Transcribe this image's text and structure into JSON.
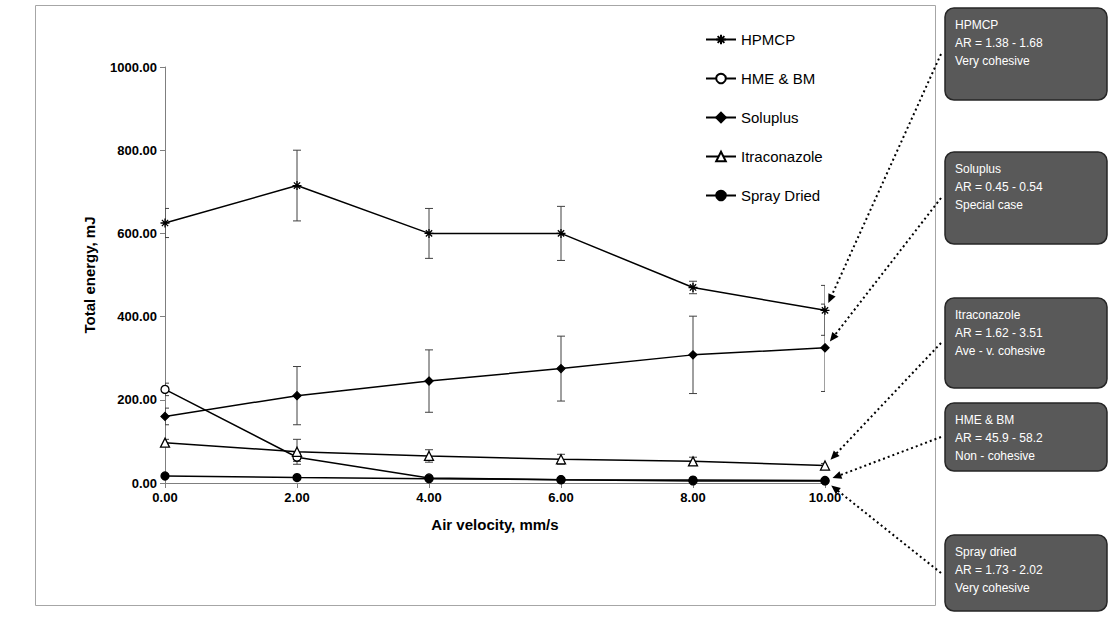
{
  "chart_data": {
    "type": "line",
    "x_label": "Air velocity, mm/s",
    "y_label": "Total energy, mJ",
    "x": [
      0,
      2,
      4,
      6,
      8,
      10
    ],
    "xlim": [
      0,
      10
    ],
    "xticks": [
      {
        "value": 0,
        "label": "0.00"
      },
      {
        "value": 2,
        "label": "2.00"
      },
      {
        "value": 4,
        "label": "4.00"
      },
      {
        "value": 6,
        "label": "6.00"
      },
      {
        "value": 8,
        "label": "8.00"
      },
      {
        "value": 10,
        "label": "10.00"
      }
    ],
    "ylim": [
      0,
      1000
    ],
    "yticks": [
      {
        "value": 0,
        "label": "0.00"
      },
      {
        "value": 200,
        "label": "200.00"
      },
      {
        "value": 400,
        "label": "400.00"
      },
      {
        "value": 600,
        "label": "600.00"
      },
      {
        "value": 800,
        "label": "800.00"
      },
      {
        "value": 1000,
        "label": "1000.00"
      }
    ],
    "grid": false,
    "legend": "upper right",
    "series": [
      {
        "name": "HPMCP",
        "color": "#000000",
        "marker": "asterisk",
        "line_style": "solid",
        "values": [
          625,
          715,
          600,
          600,
          470,
          415
        ],
        "errors": [
          35,
          85,
          60,
          65,
          15,
          60
        ]
      },
      {
        "name": "HME & BM",
        "color": "#000000",
        "marker": "open_circle",
        "line_style": "solid",
        "values": [
          225,
          62,
          12,
          8,
          5,
          5
        ],
        "errors": [
          15,
          10,
          3,
          2,
          1,
          1
        ]
      },
      {
        "name": "Soluplus",
        "color": "#000000",
        "marker": "diamond",
        "line_style": "solid",
        "values": [
          160,
          210,
          245,
          275,
          308,
          325
        ],
        "errors": [
          20,
          70,
          75,
          78,
          93,
          105
        ]
      },
      {
        "name": "Itraconazole",
        "color": "#000000",
        "marker": "open_triangle",
        "line_style": "solid",
        "values": [
          97,
          75,
          65,
          57,
          52,
          42
        ],
        "errors": [
          8,
          30,
          15,
          12,
          10,
          5
        ]
      },
      {
        "name": "Spray Dried",
        "color": "#000000",
        "marker": "circle",
        "line_style": "solid",
        "values": [
          17,
          13,
          10,
          8,
          7,
          6
        ],
        "errors": [
          2,
          2,
          2,
          1,
          1,
          1
        ]
      }
    ],
    "annotations": [
      {
        "target": "HPMCP",
        "lines": [
          "HPMCP",
          "AR = 1.38 - 1.68",
          "Very cohesive"
        ]
      },
      {
        "target": "Soluplus",
        "lines": [
          "Soluplus",
          "AR = 0.45 - 0.54",
          "Special case"
        ]
      },
      {
        "target": "Itraconazole",
        "lines": [
          "Itraconazole",
          "AR = 1.62 - 3.51",
          "Ave - v. cohesive"
        ]
      },
      {
        "target": "HME & BM",
        "lines": [
          "HME & BM",
          "AR = 45.9 - 58.2",
          "Non - cohesive"
        ]
      },
      {
        "target": "Spray Dried",
        "lines": [
          "Spray dried",
          "AR = 1.73 - 2.02",
          "Very cohesive"
        ]
      }
    ]
  }
}
